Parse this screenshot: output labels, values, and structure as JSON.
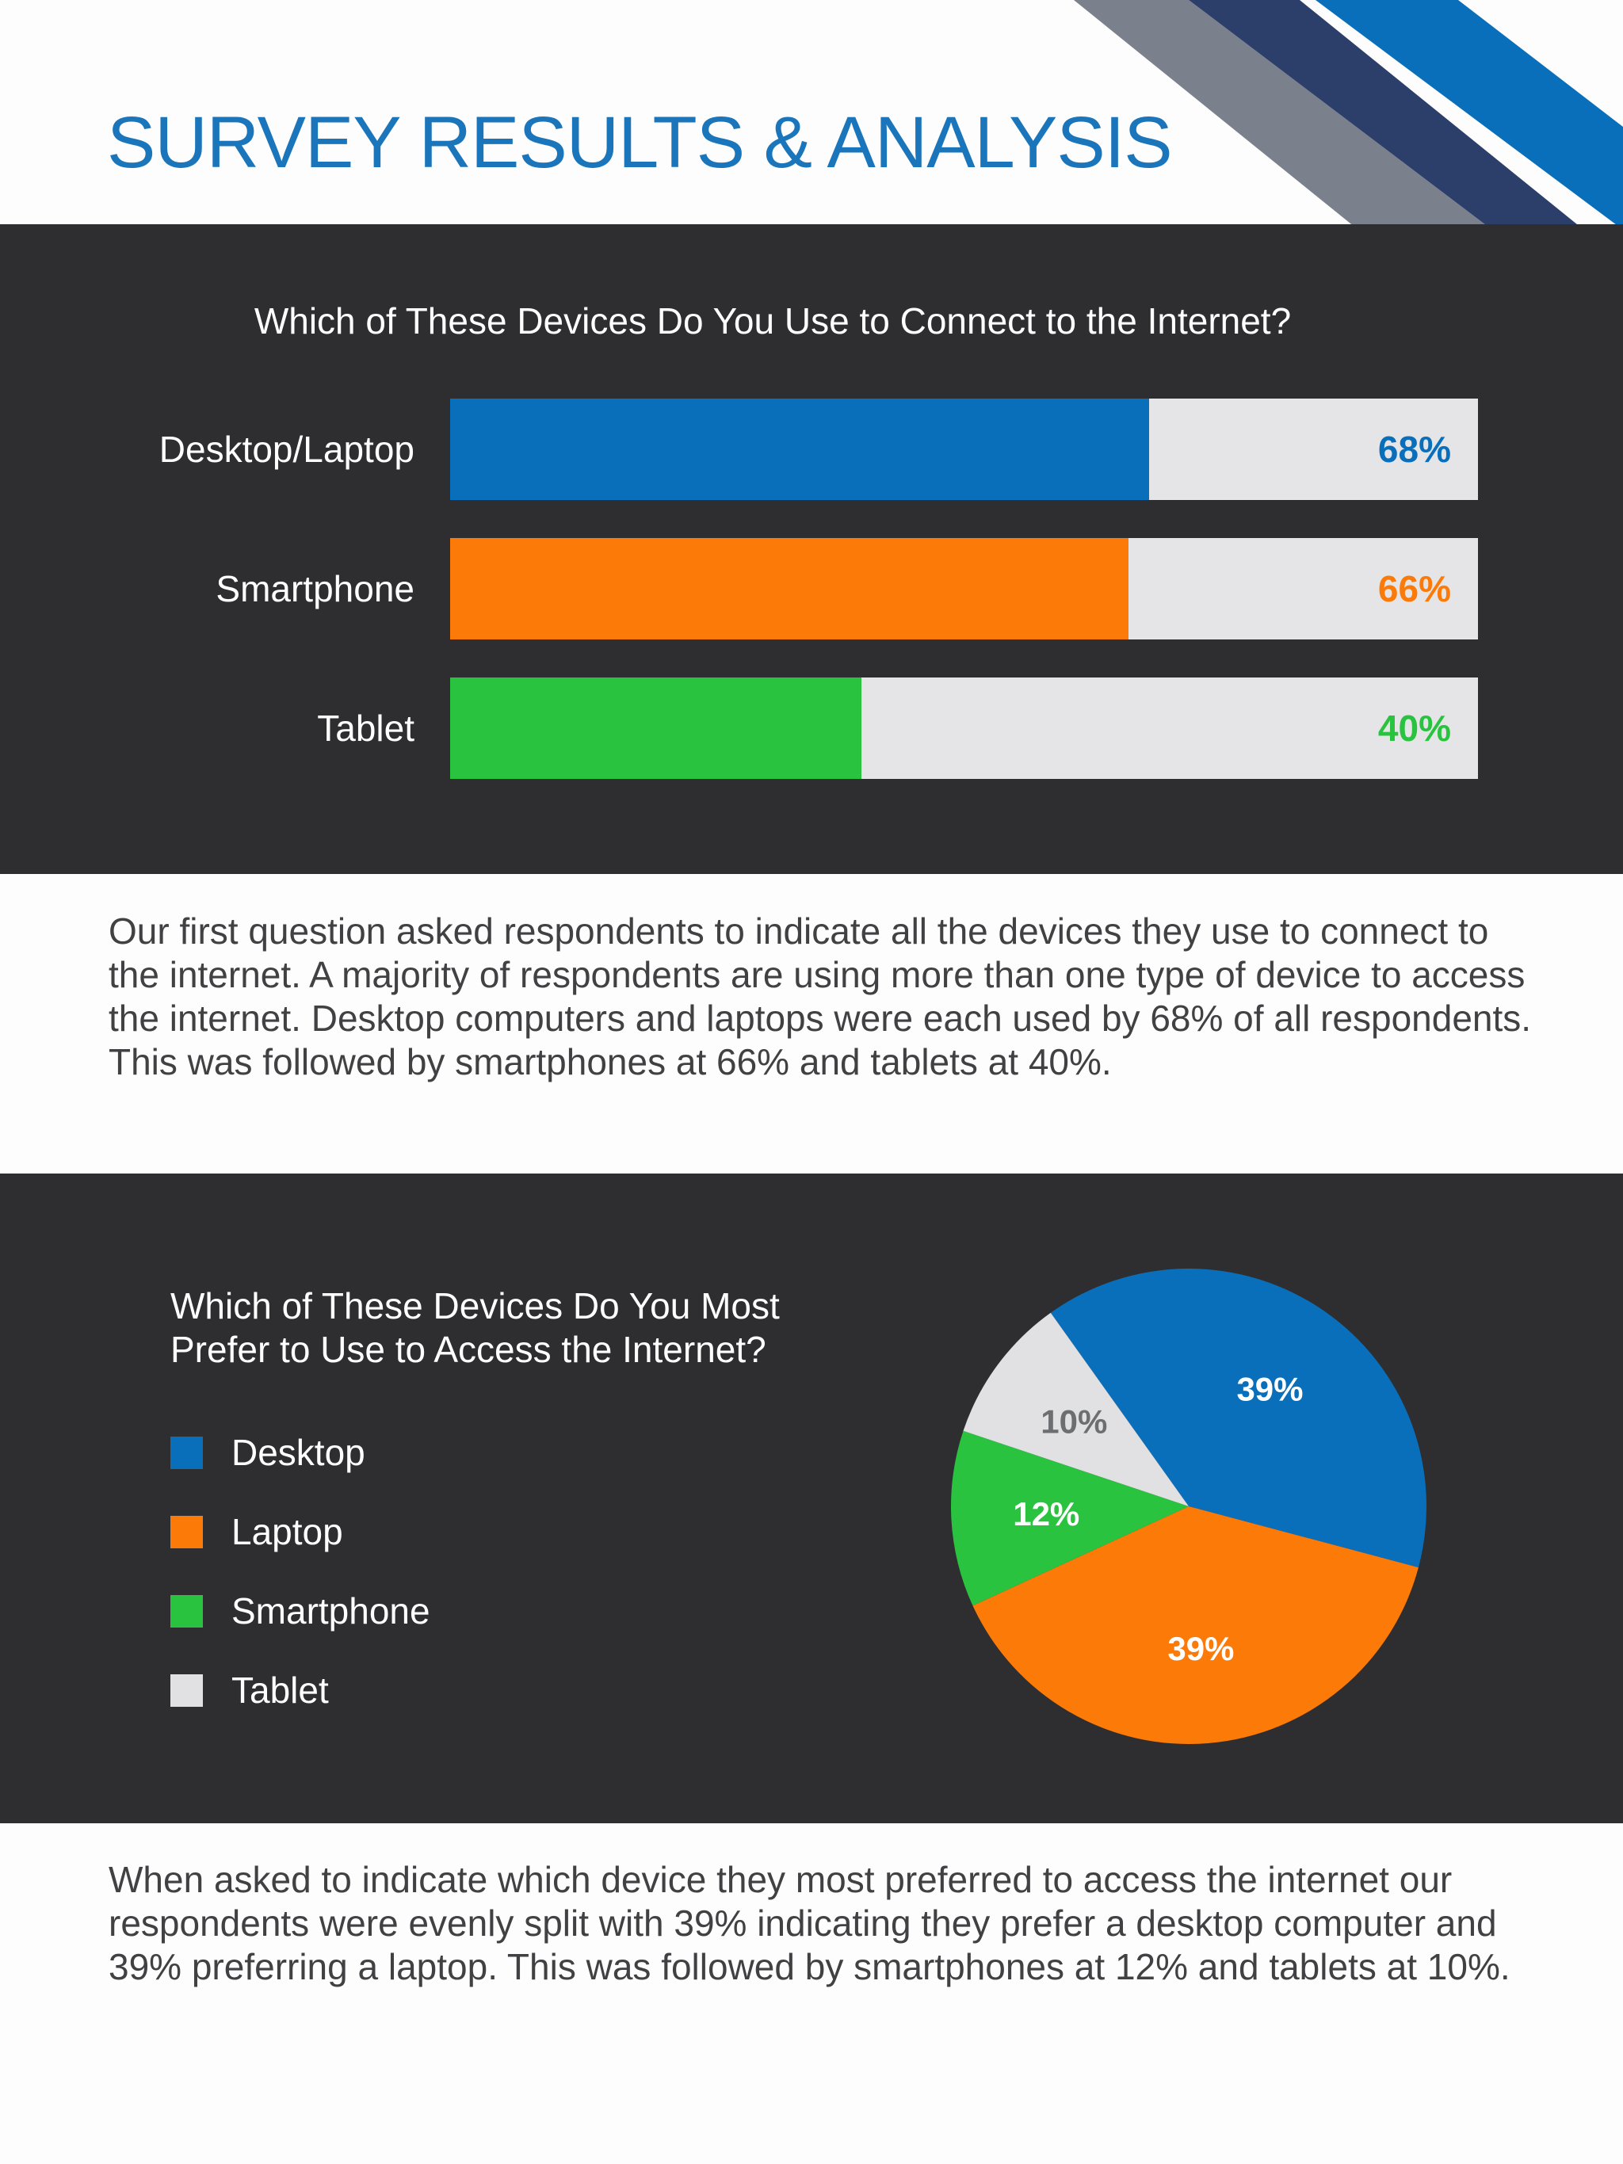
{
  "page": {
    "title": "SURVEY RESULTS & ANALYSIS",
    "paragraph_1": "Our first question asked respondents to indicate all the devices they use to connect to the internet. A majority of respondents are using more than one type of device to access the internet. Desktop computers and laptops were each used by 68% of all respondents. This was followed by smartphones at 66% and tablets at 40%.",
    "paragraph_2": "When asked to indicate which device they most preferred to access the internet our respondents were evenly split with 39% indicating they prefer a desktop computer and 39% preferring a laptop. This was followed by smartphones at 12% and tablets at 10%."
  },
  "colors": {
    "title": "#1b75bb",
    "dark_panel": "#2e2d30",
    "track": "#e5e4e6",
    "stripe_gray": "#7b818c",
    "stripe_navy": "#2c3e6a",
    "stripe_blue": "#0a6fba"
  },
  "chart_data": [
    {
      "type": "bar",
      "orientation": "horizontal",
      "title": "Which of These Devices Do You Use to Connect to the Internet?",
      "categories": [
        "Desktop/Laptop",
        "Smartphone",
        "Tablet"
      ],
      "values": [
        68,
        66,
        40
      ],
      "value_labels": [
        "68%",
        "66%",
        "40%"
      ],
      "colors": [
        "#0a6fba",
        "#fc7a08",
        "#2ac33f"
      ],
      "xlim": [
        0,
        100
      ],
      "grid": false
    },
    {
      "type": "pie",
      "title": "Which of These Devices Do You Most Prefer to Use to Access the Internet?",
      "categories": [
        "Desktop",
        "Laptop",
        "Smartphone",
        "Tablet"
      ],
      "values": [
        39,
        39,
        12,
        10
      ],
      "value_labels": [
        "39%",
        "39%",
        "12%",
        "10%"
      ],
      "colors": [
        "#0a6fba",
        "#fc7a08",
        "#2ac33f",
        "#e1e1e3"
      ],
      "label_colors": [
        "#ffffff",
        "#ffffff",
        "#ffffff",
        "#6d6e71"
      ],
      "legend_position": "left"
    }
  ]
}
